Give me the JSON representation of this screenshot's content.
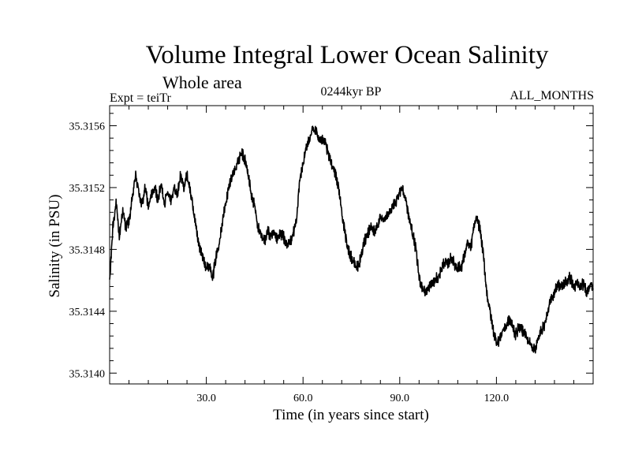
{
  "chart_data": {
    "type": "line",
    "title": "Volume Integral Lower Ocean Salinity",
    "subtitle": "Whole area",
    "experiment": "Expt = teiTr",
    "period": "0244kyr BP",
    "months": "ALL_MONTHS",
    "xlabel": "Time (in years since start)",
    "ylabel": "Salinity (in PSU)",
    "xlim": [
      0,
      150
    ],
    "ylim": [
      35.31393,
      35.31573
    ],
    "x_ticks": [
      30,
      60,
      90,
      120
    ],
    "x_tick_labels": [
      "30.0",
      "60.0",
      "90.0",
      "120.0"
    ],
    "y_ticks": [
      35.314,
      35.3144,
      35.3148,
      35.3152,
      35.3156
    ],
    "y_tick_labels": [
      "35.3140",
      "35.3144",
      "35.3148",
      "35.3152",
      "35.3156"
    ],
    "series": [
      {
        "name": "salinity",
        "x": [
          0,
          1,
          2,
          3,
          4,
          5,
          6,
          7,
          8,
          9,
          10,
          11,
          12,
          13,
          14,
          15,
          16,
          17,
          18,
          19,
          20,
          21,
          22,
          23,
          24,
          25,
          26,
          27,
          28,
          29,
          30,
          31,
          32,
          33,
          34,
          35,
          36,
          37,
          38,
          39,
          40,
          41,
          42,
          43,
          44,
          45,
          46,
          47,
          48,
          49,
          50,
          51,
          52,
          53,
          54,
          55,
          56,
          57,
          58,
          59,
          60,
          61,
          62,
          63,
          64,
          65,
          66,
          67,
          68,
          69,
          70,
          71,
          72,
          73,
          74,
          75,
          76,
          77,
          78,
          79,
          80,
          81,
          82,
          83,
          84,
          85,
          86,
          87,
          88,
          89,
          90,
          91,
          92,
          93,
          94,
          95,
          96,
          97,
          98,
          99,
          100,
          101,
          102,
          103,
          104,
          105,
          106,
          107,
          108,
          109,
          110,
          111,
          112,
          113,
          114,
          115,
          116,
          117,
          118,
          119,
          120,
          121,
          122,
          123,
          124,
          125,
          126,
          127,
          128,
          129,
          130,
          131,
          132,
          133,
          134,
          135,
          136,
          137,
          138,
          139,
          140,
          141,
          142,
          143,
          144,
          145,
          146,
          147,
          148,
          149,
          150
        ],
        "values": [
          35.31458,
          35.31495,
          35.3151,
          35.31488,
          35.31505,
          35.31495,
          35.31498,
          35.31512,
          35.31528,
          35.31518,
          35.31508,
          35.3152,
          35.31508,
          35.31515,
          35.3152,
          35.31512,
          35.31522,
          35.3151,
          35.31518,
          35.31512,
          35.3152,
          35.31515,
          35.31528,
          35.3152,
          35.31528,
          35.31518,
          35.31505,
          35.31492,
          35.3148,
          35.31475,
          35.31468,
          35.3147,
          35.31462,
          35.31475,
          35.31485,
          35.31498,
          35.3151,
          35.3152,
          35.31528,
          35.31532,
          35.31538,
          35.31542,
          35.31538,
          35.31528,
          35.31515,
          35.31508,
          35.31495,
          35.31488,
          35.31485,
          35.31492,
          35.31488,
          35.3149,
          35.31486,
          35.3149,
          35.31488,
          35.31482,
          35.31485,
          35.3149,
          35.315,
          35.31525,
          35.31535,
          35.31545,
          35.31552,
          35.31558,
          35.31556,
          35.31552,
          35.3155,
          35.31548,
          35.3154,
          35.31535,
          35.3153,
          35.3152,
          35.31505,
          35.3149,
          35.3148,
          35.31475,
          35.3147,
          35.31468,
          35.31475,
          35.31485,
          35.3149,
          35.31495,
          35.31492,
          35.31495,
          35.315,
          35.31498,
          35.31502,
          35.31505,
          35.31508,
          35.31512,
          35.31518,
          35.3152,
          35.3151,
          35.315,
          35.3149,
          35.3148,
          35.31462,
          35.31455,
          35.31452,
          35.31455,
          35.31458,
          35.3146,
          35.31462,
          35.31468,
          35.31472,
          35.3147,
          35.31475,
          35.3147,
          35.31468,
          35.31468,
          35.31475,
          35.31485,
          35.3148,
          35.31495,
          35.315,
          35.31492,
          35.31475,
          35.31452,
          35.3144,
          35.31428,
          35.3142,
          35.31422,
          35.31428,
          35.3143,
          35.31435,
          35.3143,
          35.31425,
          35.3143,
          35.31428,
          35.31425,
          35.3142,
          35.31418,
          35.31415,
          35.31422,
          35.31428,
          35.31432,
          35.3144,
          35.31448,
          35.31452,
          35.31458,
          35.31455,
          35.31458,
          35.3146,
          35.31462,
          35.31455,
          35.31458,
          35.31455,
          35.31458,
          35.31452,
          35.31458,
          35.31456
        ]
      }
    ]
  },
  "style": {
    "line_color": "#000000",
    "background": "#ffffff",
    "noise_amplitude": 5.5e-05
  }
}
